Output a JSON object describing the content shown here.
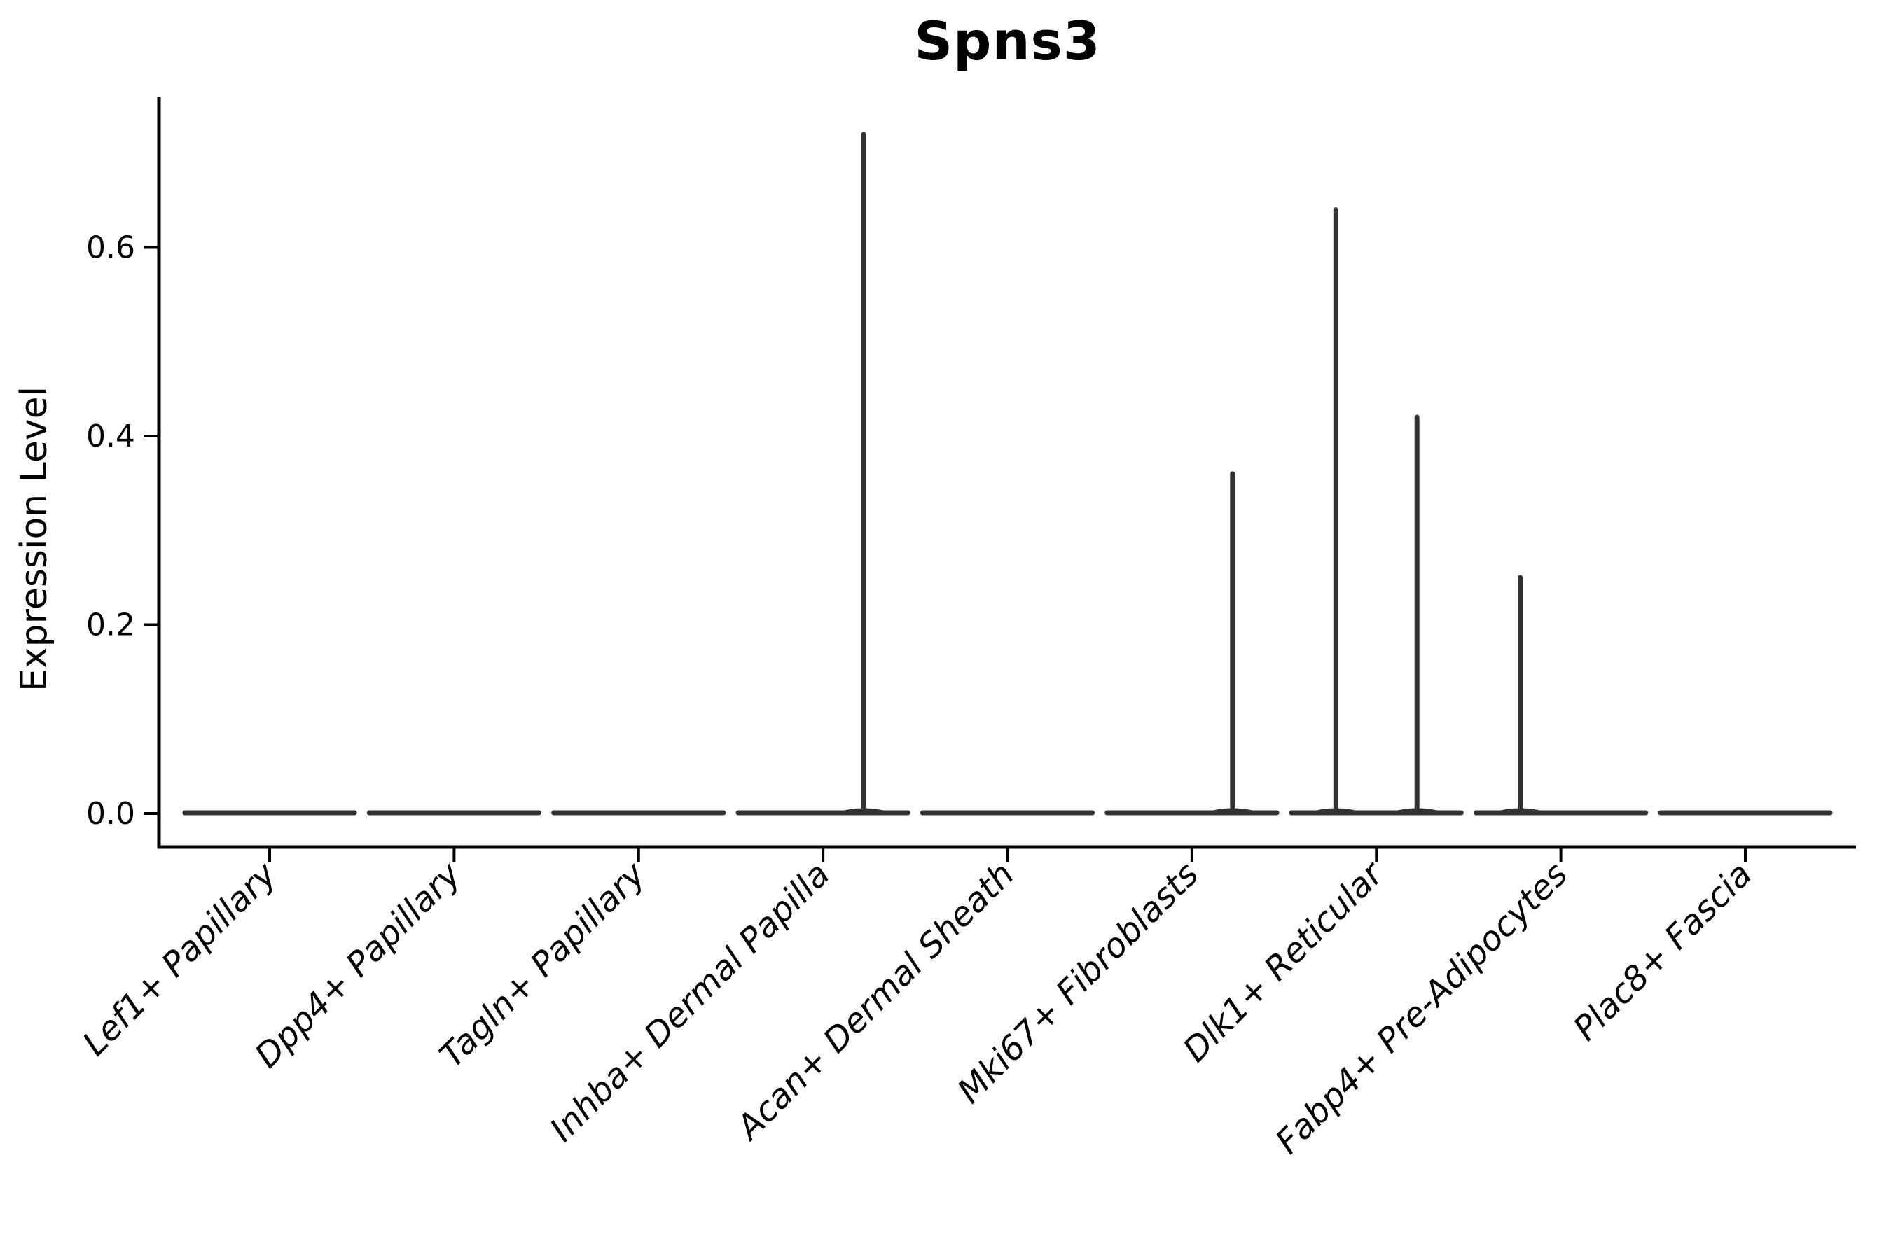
{
  "chart_data": {
    "type": "violin",
    "title": "Spns3",
    "ylabel": "Expression Level",
    "xlabel": "",
    "categories": [
      "Lef1+ Papillary",
      "Dpp4+ Papillary",
      "Tagln+ Papillary",
      "Inhba+ Dermal Papilla",
      "Acan+ Dermal Sheath",
      "Mki67+ Fibroblasts",
      "Dlk1+ Reticular",
      "Fabp4+ Pre-Adipocytes",
      "Plac8+ Fascia"
    ],
    "series": [
      {
        "category": "Lef1+ Papillary",
        "max_expression": 0.0,
        "spikes": []
      },
      {
        "category": "Dpp4+ Papillary",
        "max_expression": 0.0,
        "spikes": []
      },
      {
        "category": "Tagln+ Papillary",
        "max_expression": 0.0,
        "spikes": []
      },
      {
        "category": "Inhba+ Dermal Papilla",
        "max_expression": 0.72,
        "spikes": [
          {
            "offset": 0.22,
            "value": 0.72
          }
        ]
      },
      {
        "category": "Acan+ Dermal Sheath",
        "max_expression": 0.0,
        "spikes": []
      },
      {
        "category": "Mki67+ Fibroblasts",
        "max_expression": 0.36,
        "spikes": [
          {
            "offset": 0.22,
            "value": 0.36
          }
        ]
      },
      {
        "category": "Dlk1+ Reticular",
        "max_expression": 0.64,
        "spikes": [
          {
            "offset": -0.22,
            "value": 0.64
          },
          {
            "offset": 0.22,
            "value": 0.42
          }
        ]
      },
      {
        "category": "Fabp4+ Pre-Adipocytes",
        "max_expression": 0.25,
        "spikes": [
          {
            "offset": -0.22,
            "value": 0.25
          }
        ]
      },
      {
        "category": "Plac8+ Fascia",
        "max_expression": 0.0,
        "spikes": []
      }
    ],
    "yticks": [
      {
        "value": 0.0,
        "label": "0.0"
      },
      {
        "value": 0.2,
        "label": "0.2"
      },
      {
        "value": 0.4,
        "label": "0.4"
      },
      {
        "value": 0.6,
        "label": "0.6"
      }
    ],
    "ylim": [
      -0.036,
      0.758
    ],
    "grid": false,
    "legend": "none",
    "colors": {
      "violin_line": "#333333",
      "axis": "#000000",
      "text": "#000000",
      "background": "#ffffff"
    }
  }
}
